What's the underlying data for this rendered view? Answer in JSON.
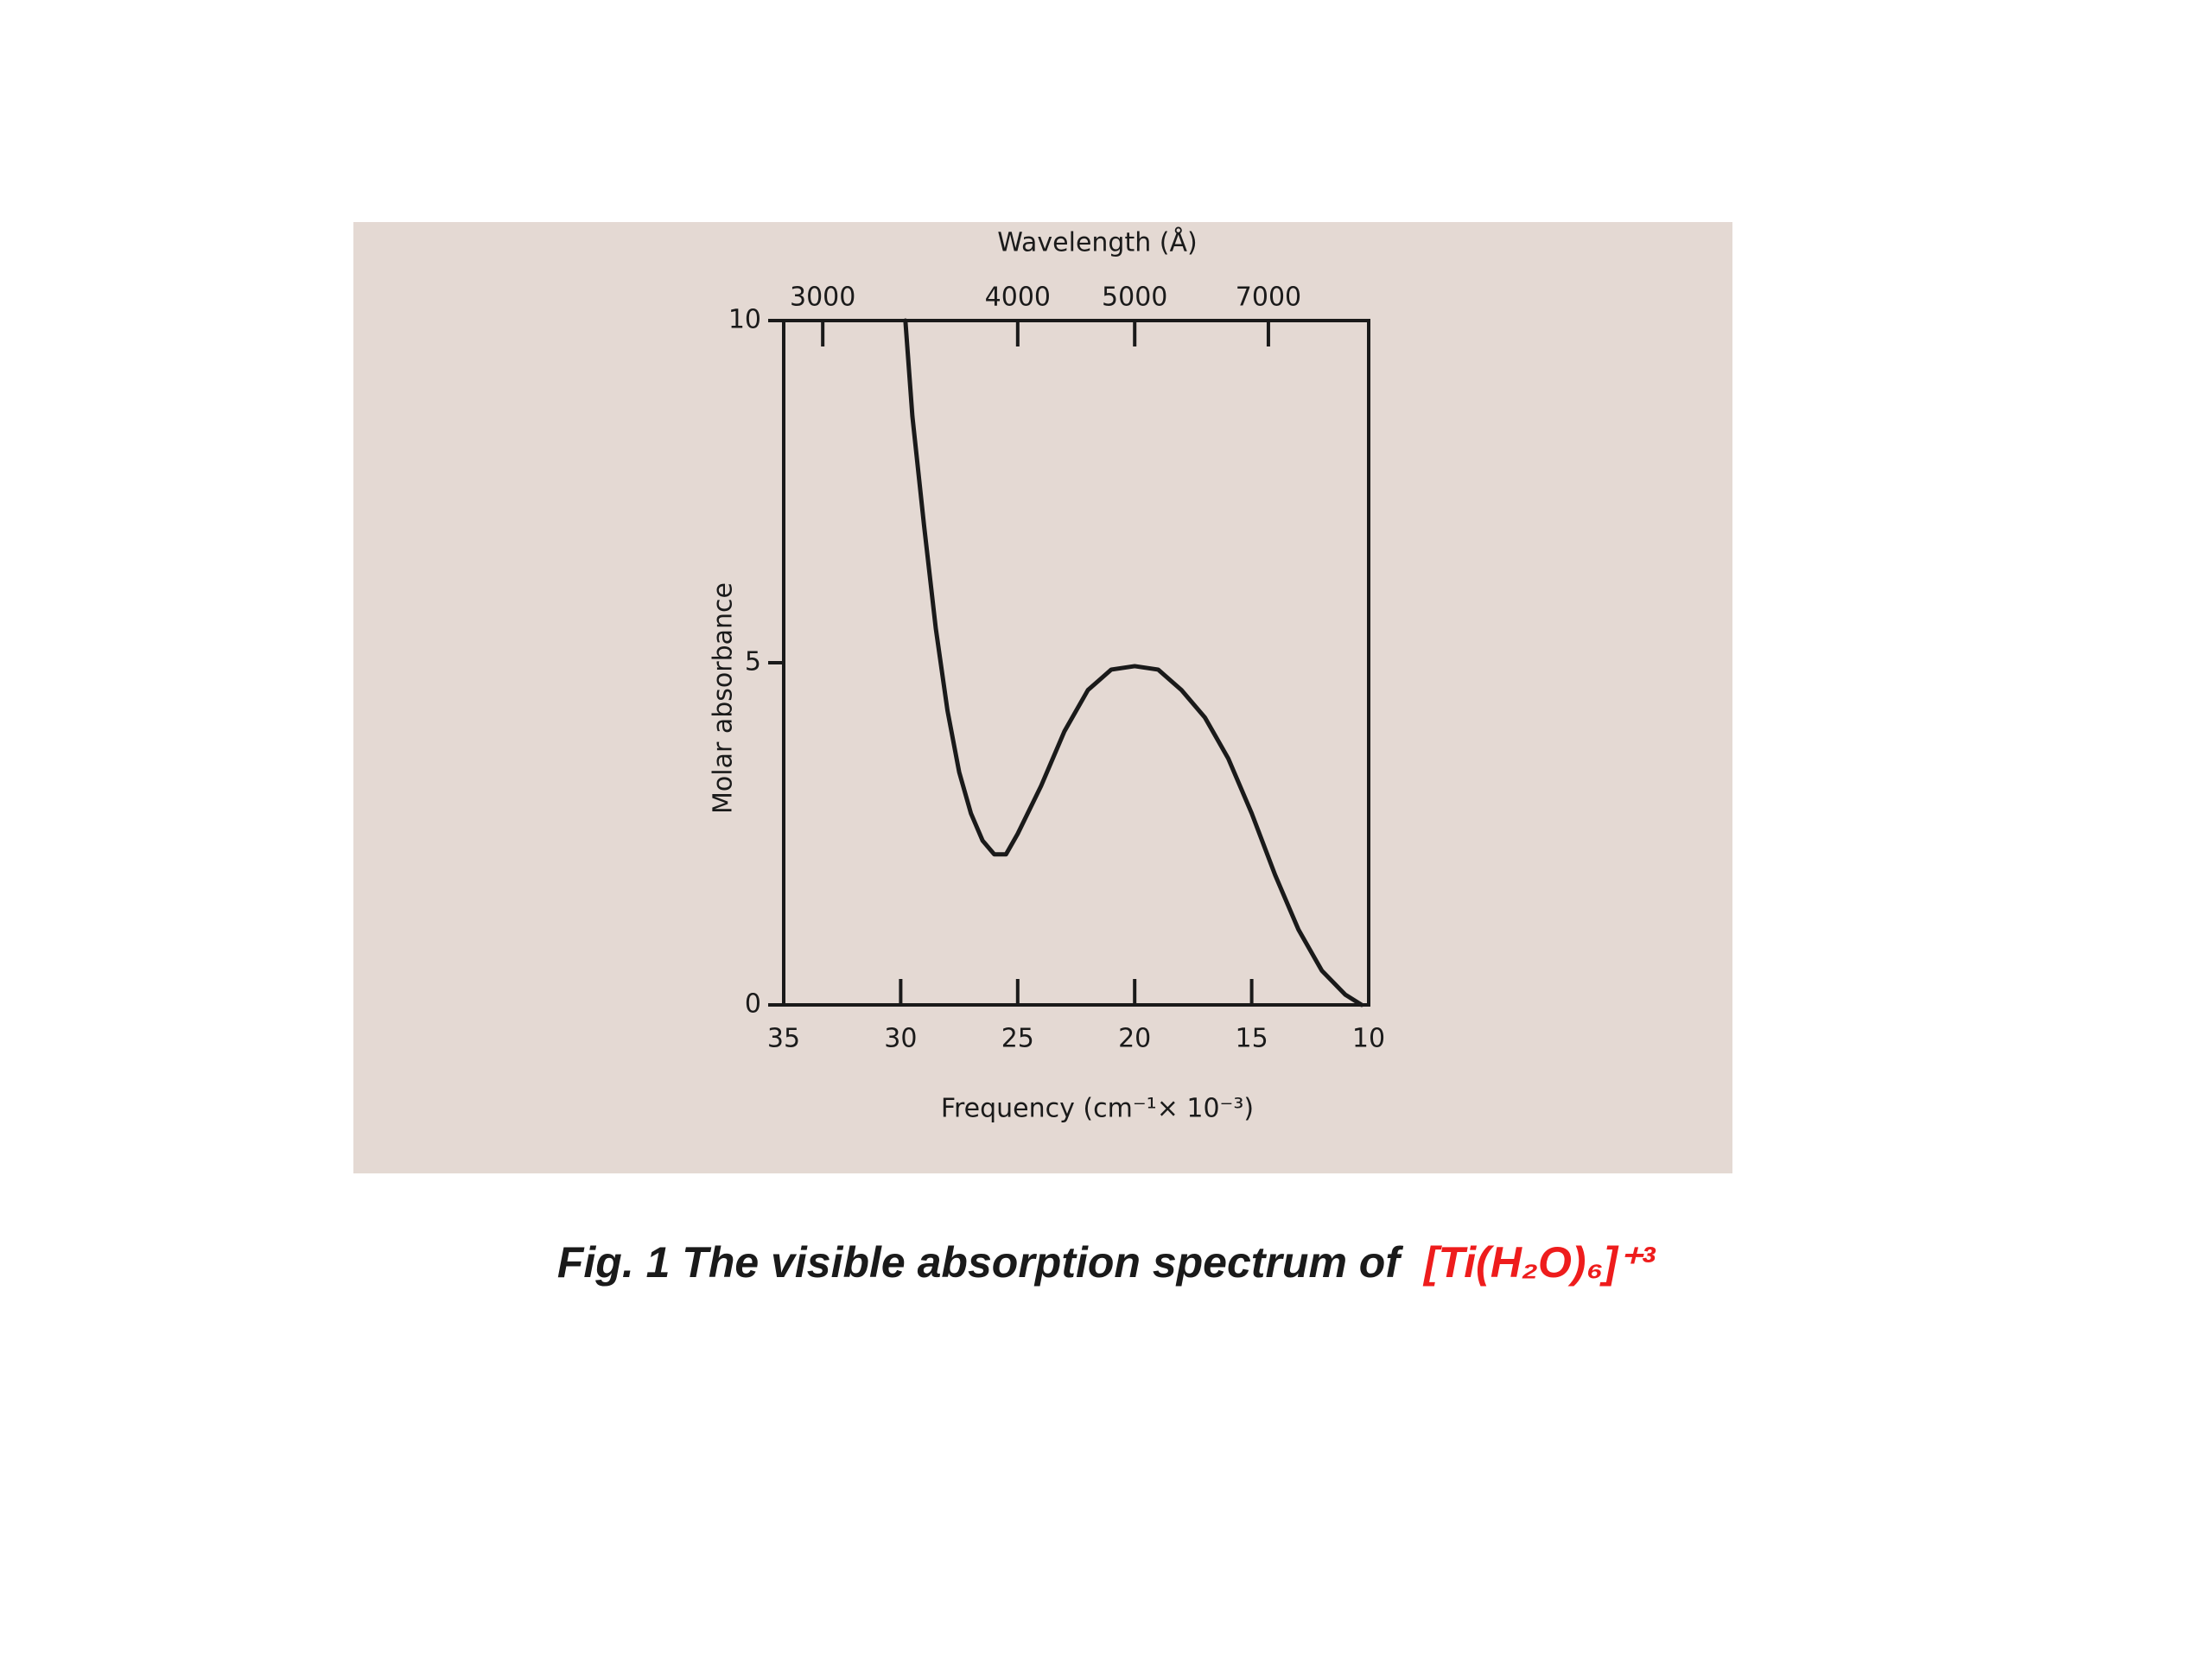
{
  "chart_data": {
    "type": "line",
    "x_label": "Frequency (cm⁻¹× 10⁻³)",
    "y_label": "Molar absorbance",
    "x2_label": "Wavelength (Å)",
    "x": [
      29.8,
      29.5,
      29,
      28.5,
      28,
      27.5,
      27,
      26.5,
      26,
      25.5,
      25,
      24,
      23,
      22,
      21,
      20,
      19,
      18,
      17,
      16,
      15,
      14,
      13,
      12,
      11,
      10.3
    ],
    "values": [
      10,
      8.6,
      7.0,
      5.5,
      4.3,
      3.4,
      2.8,
      2.4,
      2.2,
      2.2,
      2.5,
      3.2,
      4.0,
      4.6,
      4.9,
      4.95,
      4.9,
      4.6,
      4.2,
      3.6,
      2.8,
      1.9,
      1.1,
      0.5,
      0.15,
      0
    ],
    "color": "#1a1a1a",
    "xlim": [
      35,
      10
    ],
    "xticks": [
      35,
      30,
      25,
      20,
      15,
      10
    ],
    "ylim": [
      0,
      10
    ],
    "yticks": [
      0,
      5,
      10
    ],
    "x2lim": [
      2857,
      10000
    ],
    "x2ticks": [
      3000,
      4000,
      5000,
      7000
    ],
    "x2scale": "reciprocal",
    "grid": false
  },
  "caption": {
    "text": "Fig. 1 The visible absorption spectrum of",
    "formula": "[Ti(H₂O)₆]⁺³"
  }
}
